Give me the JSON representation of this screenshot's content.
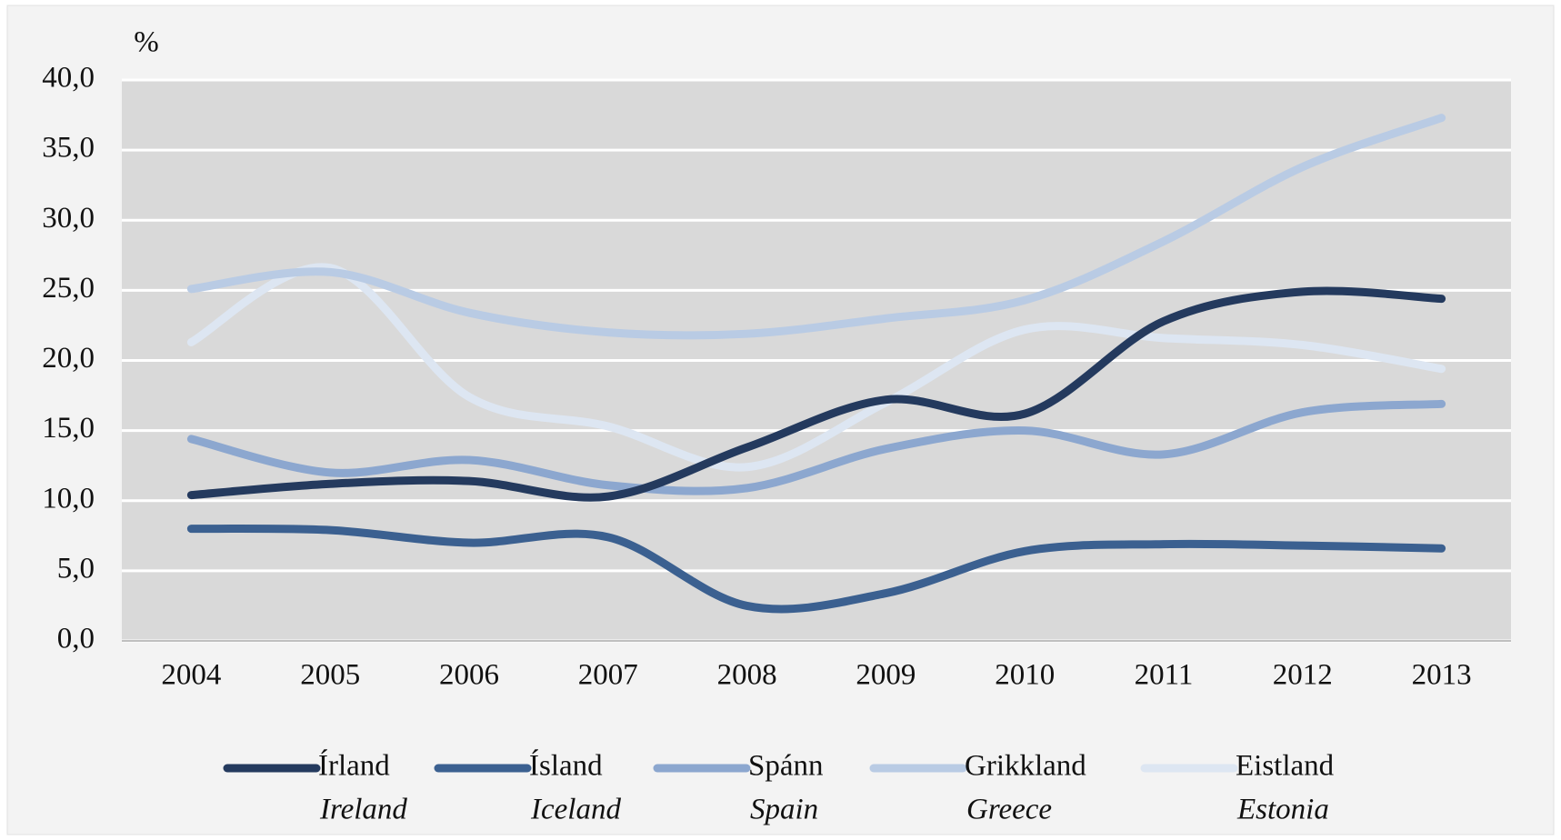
{
  "chart_data": {
    "type": "line",
    "y_label": "%",
    "categories": [
      "2004",
      "2005",
      "2006",
      "2007",
      "2008",
      "2009",
      "2010",
      "2011",
      "2012",
      "2013"
    ],
    "series": [
      {
        "name": "Írland",
        "name_en": "Ireland",
        "color": "#243a5e",
        "values": [
          10.4,
          11.2,
          11.4,
          10.3,
          13.8,
          17.2,
          16.2,
          22.8,
          24.9,
          24.4
        ]
      },
      {
        "name": "Ísland",
        "name_en": "Iceland",
        "color": "#3b6090",
        "values": [
          8.0,
          7.9,
          7.0,
          7.4,
          2.5,
          3.4,
          6.4,
          6.9,
          6.8,
          6.6
        ]
      },
      {
        "name": "Spánn",
        "name_en": "Spain",
        "color": "#8ca7cf",
        "values": [
          14.4,
          12.0,
          12.9,
          11.1,
          10.9,
          13.7,
          15.0,
          13.3,
          16.3,
          16.9
        ]
      },
      {
        "name": "Grikkland",
        "name_en": "Greece",
        "color": "#b9cbe4",
        "values": [
          25.1,
          26.3,
          23.4,
          22.0,
          21.9,
          23.0,
          24.3,
          28.5,
          33.8,
          37.3
        ]
      },
      {
        "name": "Eistland",
        "name_en": "Estonia",
        "color": "#dde6f2",
        "values": [
          21.3,
          26.6,
          17.4,
          15.3,
          12.4,
          17.0,
          22.2,
          21.6,
          21.1,
          19.4
        ]
      }
    ],
    "ylim": [
      0,
      40
    ],
    "yticks": [
      {
        "value": 0,
        "label": "0,0"
      },
      {
        "value": 5,
        "label": "5,0"
      },
      {
        "value": 10,
        "label": "10,0"
      },
      {
        "value": 15,
        "label": "15,0"
      },
      {
        "value": 20,
        "label": "20,0"
      },
      {
        "value": 25,
        "label": "25,0"
      },
      {
        "value": 30,
        "label": "30,0"
      },
      {
        "value": 35,
        "label": "35,0"
      },
      {
        "value": 40,
        "label": "40,0"
      }
    ],
    "grid": true
  }
}
